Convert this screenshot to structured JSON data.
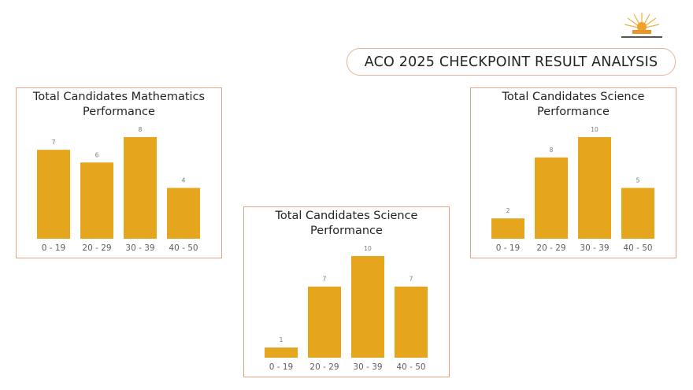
{
  "header": {
    "title": "ACO 2025 CHECKPOINT RESULT ANALYSIS"
  },
  "colors": {
    "bar": "#E5A51C",
    "border": "#E2A588",
    "label": "#605E5C"
  },
  "chart_data": [
    {
      "type": "bar",
      "title": "Total Candidates Mathematics Performance",
      "title_lines": [
        "Total Candidates Mathematics",
        "Performance"
      ],
      "categories": [
        "0 - 19",
        "20 - 29",
        "30 - 39",
        "40 - 50"
      ],
      "values": [
        7,
        6,
        8,
        4
      ],
      "xlabel": "",
      "ylabel": "",
      "ylim": [
        0,
        8
      ],
      "grid": false
    },
    {
      "type": "bar",
      "title": "Total Candidates Science Performance",
      "title_lines": [
        "Total Candidates Science",
        "Performance"
      ],
      "categories": [
        "0 - 19",
        "20 - 29",
        "30 - 39",
        "40 - 50"
      ],
      "values": [
        1,
        7,
        10,
        7
      ],
      "xlabel": "",
      "ylabel": "",
      "ylim": [
        0,
        10
      ],
      "grid": false
    },
    {
      "type": "bar",
      "title": "Total Candidates Science Performance",
      "title_lines": [
        "Total Candidates Science",
        "Performance"
      ],
      "categories": [
        "0 - 19",
        "20 - 29",
        "30 - 39",
        "40 - 50"
      ],
      "values": [
        2,
        8,
        10,
        5
      ],
      "xlabel": "",
      "ylabel": "",
      "ylim": [
        0,
        10
      ],
      "grid": false
    }
  ]
}
